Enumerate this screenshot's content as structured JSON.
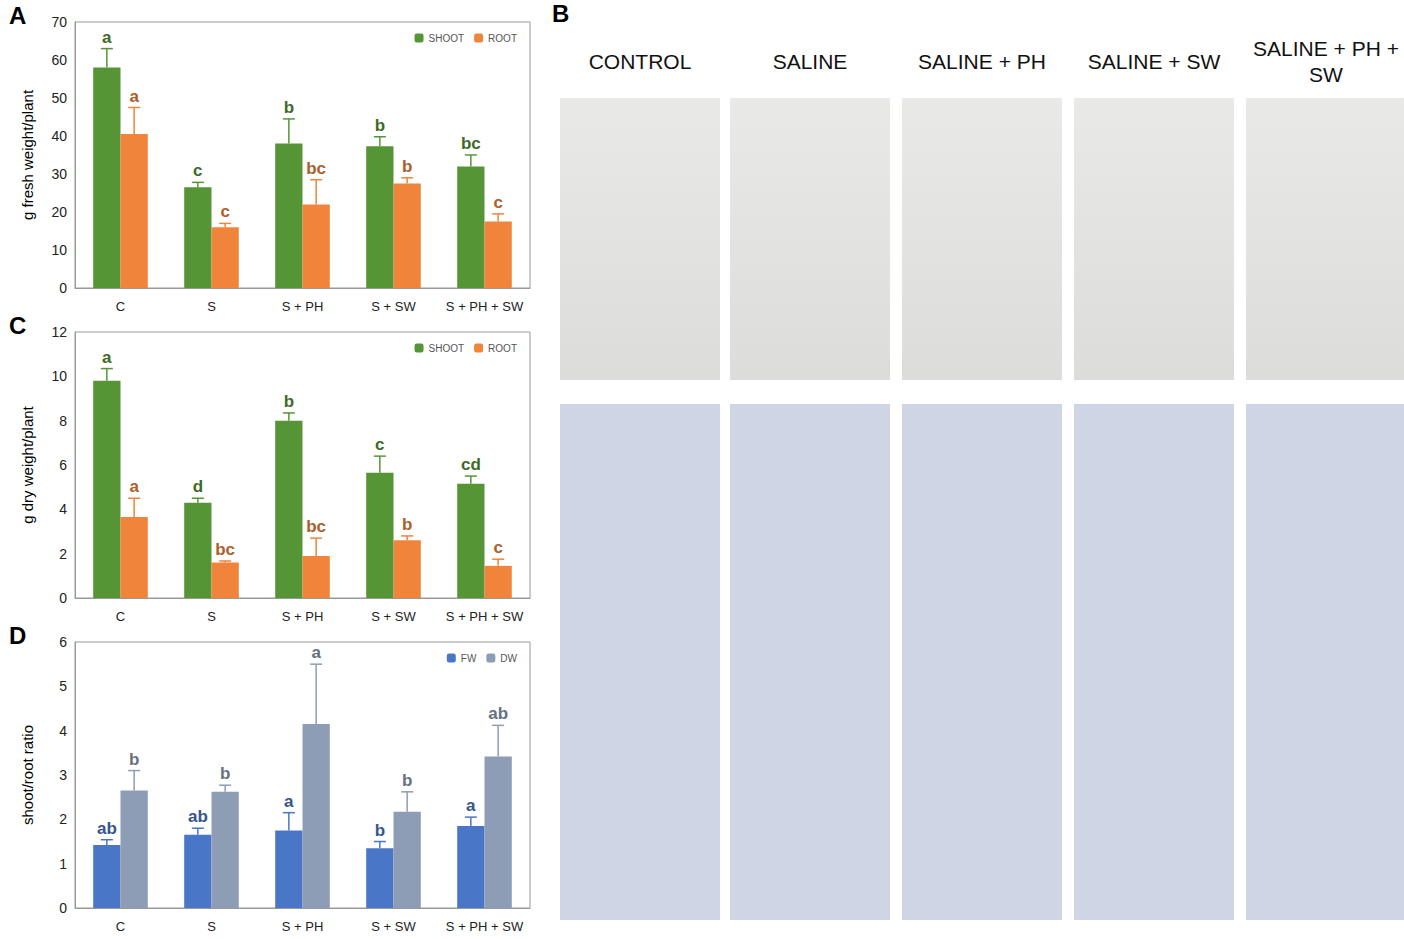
{
  "chart_data": [
    {
      "type": "bar",
      "title": "A",
      "categories": [
        "C",
        "S",
        "S + PH",
        "S + SW",
        "S + PH + SW"
      ],
      "ylabel": "g fresh weight/plant",
      "ylim": [
        0,
        70
      ],
      "yticks": [
        0,
        10,
        20,
        30,
        40,
        50,
        60,
        70
      ],
      "grid": false,
      "legend": "upper right",
      "series": [
        {
          "name": "SHOOT",
          "color": "#559536",
          "values": [
            58,
            26.5,
            38,
            37.3,
            32
          ],
          "errors": [
            5,
            1.3,
            6.5,
            2.5,
            3
          ],
          "letters": [
            "a",
            "c",
            "b",
            "b",
            "bc"
          ]
        },
        {
          "name": "ROOT",
          "color": "#f0843a",
          "values": [
            40.5,
            16,
            22,
            27.5,
            17.5
          ],
          "errors": [
            7,
            1,
            6.5,
            1.5,
            2
          ],
          "letters": [
            "a",
            "c",
            "bc",
            "b",
            "c"
          ]
        }
      ]
    },
    {
      "type": "bar",
      "title": "C",
      "categories": [
        "C",
        "S",
        "S + PH",
        "S + SW",
        "S + PH + SW"
      ],
      "ylabel": "g dry weight/plant",
      "ylim": [
        0,
        12
      ],
      "yticks": [
        0,
        2,
        4,
        6,
        8,
        10,
        12
      ],
      "grid": false,
      "legend": "upper right",
      "series": [
        {
          "name": "SHOOT",
          "color": "#559536",
          "values": [
            9.8,
            4.3,
            8.0,
            5.65,
            5.15
          ],
          "errors": [
            0.55,
            0.2,
            0.35,
            0.75,
            0.35
          ],
          "letters": [
            "a",
            "d",
            "b",
            "c",
            "cd"
          ]
        },
        {
          "name": "ROOT",
          "color": "#f0843a",
          "values": [
            3.65,
            1.6,
            1.9,
            2.6,
            1.45
          ],
          "errors": [
            0.85,
            0.07,
            0.8,
            0.2,
            0.3
          ],
          "letters": [
            "a",
            "bc",
            "bc",
            "b",
            "c"
          ]
        }
      ]
    },
    {
      "type": "bar",
      "title": "D",
      "categories": [
        "C",
        "S",
        "S + PH",
        "S + SW",
        "S + PH + SW"
      ],
      "ylabel": "shoot/root ratio",
      "ylim": [
        0,
        6
      ],
      "yticks": [
        0,
        1,
        2,
        3,
        4,
        5,
        6
      ],
      "grid": false,
      "legend": "upper right",
      "series": [
        {
          "name": "FW",
          "color": "#4a76c8",
          "values": [
            1.42,
            1.65,
            1.75,
            1.35,
            1.85
          ],
          "errors": [
            0.12,
            0.15,
            0.4,
            0.15,
            0.2
          ],
          "letters": [
            "ab",
            "ab",
            "a",
            "b",
            "a"
          ]
        },
        {
          "name": "DW",
          "color": "#8d9db5",
          "values": [
            2.65,
            2.62,
            4.15,
            2.17,
            3.42
          ],
          "errors": [
            0.45,
            0.15,
            1.35,
            0.45,
            0.7
          ],
          "letters": [
            "b",
            "b",
            "a",
            "b",
            "ab"
          ]
        }
      ]
    }
  ],
  "photo_panel": {
    "title": "B",
    "columns": [
      "CONTROL",
      "SALINE",
      "SALINE + PH",
      "SALINE + SW",
      "SALINE + PH + SW"
    ]
  }
}
